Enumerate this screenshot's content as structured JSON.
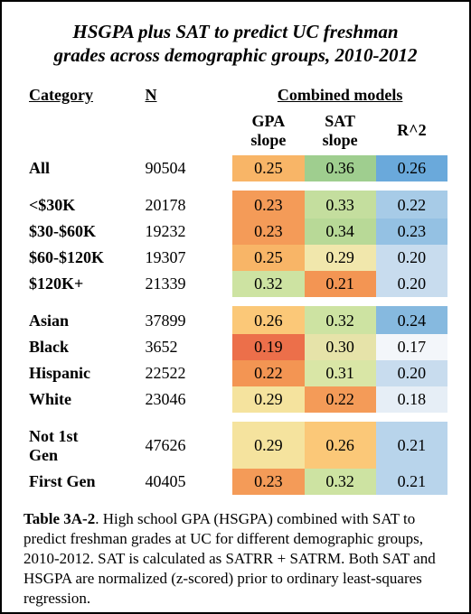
{
  "title_line1": "HSGPA plus SAT to predict UC freshman",
  "title_line2": "grades across demographic groups, 2010-2012",
  "headers": {
    "category": "Category",
    "n": "N",
    "combined": "Combined models",
    "gpa_slope_l1": "GPA",
    "gpa_slope_l2": "slope",
    "sat_slope_l1": "SAT",
    "sat_slope_l2": "slope",
    "r2": "R^2"
  },
  "groups": [
    [
      {
        "label": "All",
        "n": "90504",
        "gpa": "0.25",
        "sat": "0.36",
        "r2": "0.26",
        "gpa_bg": "#f8b567",
        "sat_bg": "#9fce8f",
        "r2_bg": "#6aa9db"
      }
    ],
    [
      {
        "label": "<$30K",
        "n": "20178",
        "gpa": "0.23",
        "sat": "0.33",
        "r2": "0.22",
        "gpa_bg": "#f49b58",
        "sat_bg": "#c4de9e",
        "r2_bg": "#a7cbe7"
      },
      {
        "label": "$30-$60K",
        "n": "19232",
        "gpa": "0.23",
        "sat": "0.34",
        "r2": "0.23",
        "gpa_bg": "#f49b58",
        "sat_bg": "#b8d997",
        "r2_bg": "#94c1e3"
      },
      {
        "label": "$60-$120K",
        "n": "19307",
        "gpa": "0.25",
        "sat": "0.29",
        "r2": "0.20",
        "gpa_bg": "#f8b567",
        "sat_bg": "#f1e7ac",
        "r2_bg": "#c8dcee"
      },
      {
        "label": "$120K+",
        "n": "21339",
        "gpa": "0.32",
        "sat": "0.21",
        "r2": "0.20",
        "gpa_bg": "#cde3a2",
        "sat_bg": "#f39553",
        "r2_bg": "#c8dcee"
      }
    ],
    [
      {
        "label": "Asian",
        "n": "37899",
        "gpa": "0.26",
        "sat": "0.32",
        "r2": "0.24",
        "gpa_bg": "#fbc878",
        "sat_bg": "#cde3a2",
        "r2_bg": "#86b9df"
      },
      {
        "label": "Black",
        "n": "3652",
        "gpa": "0.19",
        "sat": "0.30",
        "r2": "0.17",
        "gpa_bg": "#ec6f4a",
        "sat_bg": "#e6e3a9",
        "r2_bg": "#f3f6fa"
      },
      {
        "label": "Hispanic",
        "n": "22522",
        "gpa": "0.22",
        "sat": "0.31",
        "r2": "0.20",
        "gpa_bg": "#f39553",
        "sat_bg": "#d9e6a6",
        "r2_bg": "#c8dcee"
      },
      {
        "label": "White",
        "n": "23046",
        "gpa": "0.29",
        "sat": "0.22",
        "r2": "0.18",
        "gpa_bg": "#f5e39e",
        "sat_bg": "#f49b58",
        "r2_bg": "#e6eef6"
      }
    ],
    [
      {
        "label": "Not 1st",
        "label2": "Gen",
        "n": "47626",
        "gpa": "0.29",
        "sat": "0.26",
        "r2": "0.21",
        "gpa_bg": "#f5e39e",
        "sat_bg": "#fbc878",
        "r2_bg": "#b8d4eb"
      },
      {
        "label": "First Gen",
        "n": "40405",
        "gpa": "0.23",
        "sat": "0.32",
        "r2": "0.21",
        "gpa_bg": "#f49b58",
        "sat_bg": "#cde3a2",
        "r2_bg": "#b8d4eb"
      }
    ]
  ],
  "caption_bold": "Table 3A-2",
  "caption_rest": ". High school GPA (HSGPA) combined with SAT to predict freshman grades at UC for different demographic groups, 2010-2012. SAT is calculated as SATRR + SATRM. Both SAT and HSGPA are normalized (z-scored) prior to ordinary least-squares regression."
}
